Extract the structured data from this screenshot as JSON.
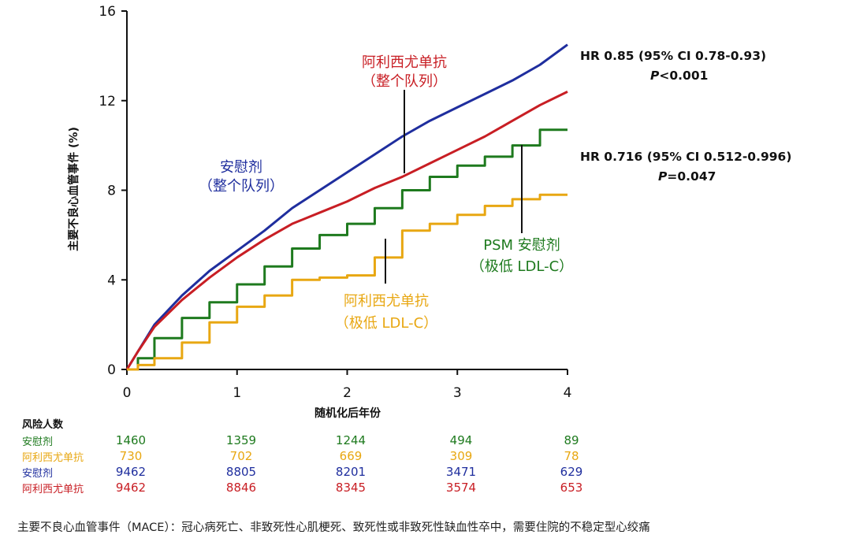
{
  "chart_data": {
    "type": "line",
    "xlabel": "随机化后年份",
    "ylabel": "主要不良心血管事件 (%)",
    "xlim": [
      0,
      4
    ],
    "ylim": [
      0,
      16
    ],
    "x_ticks": [
      "0",
      "1",
      "2",
      "3",
      "4"
    ],
    "y_ticks": [
      "0",
      "4",
      "8",
      "12",
      "16"
    ],
    "grid": false,
    "series": [
      {
        "name": "安慰剂（整个队列）",
        "color": "#1f2e9e",
        "x": [
          0,
          0.1,
          0.25,
          0.5,
          0.75,
          1.0,
          1.25,
          1.5,
          1.75,
          2.0,
          2.25,
          2.5,
          2.75,
          3.0,
          3.25,
          3.5,
          3.75,
          4.0
        ],
        "y": [
          0,
          0.8,
          2.0,
          3.3,
          4.4,
          5.3,
          6.2,
          7.2,
          8.0,
          8.8,
          9.6,
          10.4,
          11.1,
          11.7,
          12.3,
          12.9,
          13.6,
          14.5
        ]
      },
      {
        "name": "阿利西尤单抗（整个队列）",
        "color": "#c81e24",
        "x": [
          0,
          0.1,
          0.25,
          0.5,
          0.75,
          1.0,
          1.25,
          1.5,
          1.75,
          2.0,
          2.25,
          2.5,
          2.75,
          3.0,
          3.25,
          3.5,
          3.75,
          4.0
        ],
        "y": [
          0,
          0.8,
          1.9,
          3.1,
          4.1,
          5.0,
          5.8,
          6.5,
          7.0,
          7.5,
          8.1,
          8.6,
          9.2,
          9.8,
          10.4,
          11.1,
          11.8,
          12.4
        ]
      },
      {
        "name": "PSM 安慰剂（极低 LDL-C）",
        "color": "#1e7a1e",
        "x": [
          0,
          0.1,
          0.25,
          0.5,
          0.75,
          1.0,
          1.25,
          1.5,
          1.75,
          2.0,
          2.25,
          2.5,
          2.75,
          3.0,
          3.25,
          3.5,
          3.75,
          4.0
        ],
        "y": [
          0,
          0.5,
          1.4,
          2.3,
          3.0,
          3.8,
          4.6,
          5.4,
          6.0,
          6.5,
          7.2,
          8.0,
          8.6,
          9.1,
          9.5,
          10.0,
          10.7,
          10.7
        ]
      },
      {
        "name": "阿利西尤单抗（极低 LDL-C）",
        "color": "#e8a712",
        "x": [
          0,
          0.1,
          0.25,
          0.5,
          0.75,
          1.0,
          1.25,
          1.5,
          1.75,
          2.0,
          2.25,
          2.5,
          2.75,
          3.0,
          3.25,
          3.5,
          3.75,
          4.0
        ],
        "y": [
          0,
          0.2,
          0.5,
          1.2,
          2.1,
          2.8,
          3.3,
          4.0,
          4.1,
          4.2,
          5.0,
          6.2,
          6.5,
          6.9,
          7.3,
          7.6,
          7.8,
          7.8
        ]
      }
    ],
    "curve_labels": {
      "placebo_full_line1": "安慰剂",
      "placebo_full_line2": "（整个队列）",
      "alirocumab_full_line1": "阿利西尤单抗",
      "alirocumab_full_line2": "（整个队列）",
      "psm_placebo_line1": "PSM 安慰剂",
      "psm_placebo_line2": "（极低 LDL-C）",
      "alirocumab_low_line1": "阿利西尤单抗",
      "alirocumab_low_line2": "（极低 LDL-C）"
    },
    "annotations": {
      "hr_full": "HR 0.85 (95%  CI 0.78-0.93)",
      "p_full": "<0.001",
      "hr_low": "HR 0.716 (95%  CI 0.512-0.996)",
      "p_low": "=0.047",
      "p_letter": "P"
    }
  },
  "risk_table": {
    "title": "风险人数",
    "rows": [
      {
        "label": "安慰剂",
        "color": "#1e7a1e",
        "values": [
          "1460",
          "1359",
          "1244",
          "494",
          "89"
        ]
      },
      {
        "label": "阿利西尤单抗",
        "color": "#e8a712",
        "values": [
          "730",
          "702",
          "669",
          "309",
          "78"
        ]
      },
      {
        "label": "安慰剂",
        "color": "#1f2e9e",
        "values": [
          "9462",
          "8805",
          "8201",
          "3471",
          "629"
        ]
      },
      {
        "label": "阿利西尤单抗",
        "color": "#c81e24",
        "values": [
          "9462",
          "8846",
          "8345",
          "3574",
          "653"
        ]
      }
    ]
  },
  "footnote": "主要不良心血管事件（MACE）：冠心病死亡、非致死性心肌梗死、致死性或非致死性缺血性卒中，需要住院的不稳定型心绞痛"
}
